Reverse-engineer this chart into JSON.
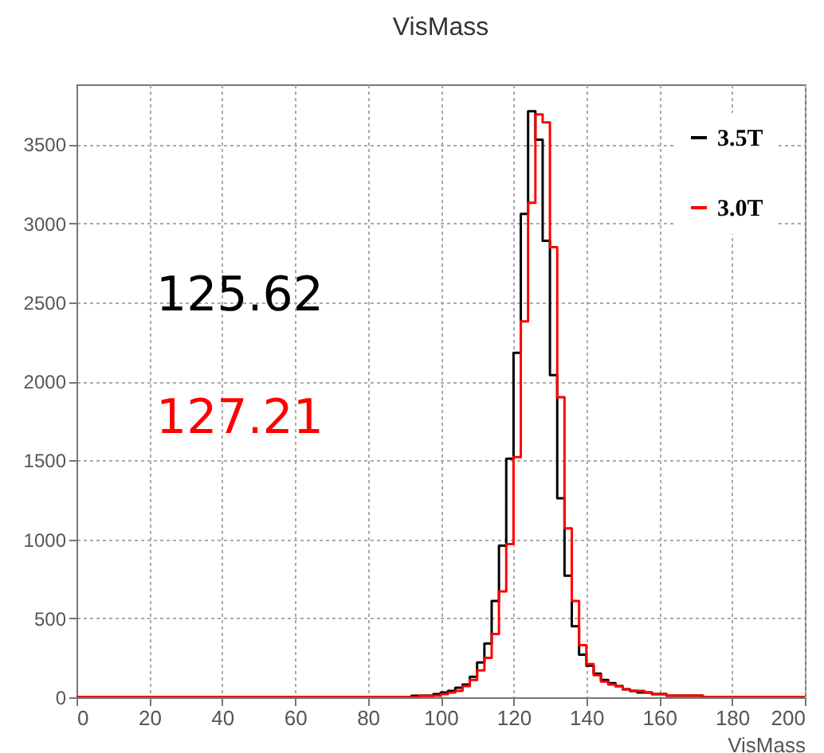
{
  "chart_data": {
    "type": "histogram",
    "title": "VisMass",
    "xlabel": "VisMass",
    "bins": [
      0,
      2,
      4,
      6,
      8,
      10,
      12,
      14,
      16,
      18,
      20,
      22,
      24,
      26,
      28,
      30,
      32,
      34,
      36,
      38,
      40,
      42,
      44,
      46,
      48,
      50,
      52,
      54,
      56,
      58,
      60,
      62,
      64,
      66,
      68,
      70,
      72,
      74,
      76,
      78,
      80,
      82,
      84,
      86,
      88,
      90,
      92,
      94,
      96,
      98,
      100,
      102,
      104,
      106,
      108,
      110,
      112,
      114,
      116,
      118,
      120,
      122,
      124,
      126,
      128,
      130,
      132,
      134,
      136,
      138,
      140,
      142,
      144,
      146,
      148,
      150,
      152,
      154,
      156,
      158,
      160,
      162,
      164,
      166,
      168,
      170,
      172,
      174,
      176,
      178,
      180,
      182,
      184,
      186,
      188,
      190,
      192,
      194,
      196,
      198,
      200
    ],
    "series": [
      {
        "name": "3.5T",
        "color": "#000000",
        "values": [
          0,
          0,
          0,
          0,
          0,
          0,
          0,
          0,
          0,
          0,
          0,
          0,
          0,
          0,
          0,
          0,
          0,
          0,
          0,
          0,
          0,
          0,
          0,
          0,
          0,
          0,
          0,
          0,
          0,
          0,
          0,
          0,
          0,
          0,
          0,
          0,
          0,
          0,
          0,
          0,
          0,
          0,
          0,
          0,
          0,
          0,
          10,
          10,
          10,
          20,
          30,
          40,
          60,
          80,
          130,
          220,
          340,
          610,
          960,
          1510,
          2180,
          3060,
          3710,
          3530,
          2890,
          2040,
          1260,
          770,
          450,
          270,
          200,
          150,
          110,
          90,
          70,
          50,
          40,
          30,
          30,
          20,
          20,
          10,
          10,
          10,
          10,
          10,
          0,
          0,
          0,
          0,
          0,
          0,
          0,
          0,
          0,
          0,
          0,
          0,
          0,
          0
        ]
      },
      {
        "name": "3.0T",
        "color": "#ff0000",
        "values": [
          0,
          0,
          0,
          0,
          0,
          0,
          0,
          0,
          0,
          0,
          0,
          0,
          0,
          0,
          0,
          0,
          0,
          0,
          0,
          0,
          0,
          0,
          0,
          0,
          0,
          0,
          0,
          0,
          0,
          0,
          0,
          0,
          0,
          0,
          0,
          0,
          0,
          0,
          0,
          0,
          0,
          0,
          0,
          0,
          0,
          0,
          0,
          10,
          10,
          10,
          20,
          30,
          40,
          70,
          110,
          170,
          250,
          400,
          670,
          970,
          1520,
          2380,
          3130,
          3690,
          3640,
          2850,
          1900,
          1070,
          610,
          330,
          210,
          140,
          100,
          80,
          70,
          50,
          40,
          40,
          30,
          20,
          20,
          10,
          10,
          10,
          10,
          10,
          0,
          0,
          0,
          0,
          0,
          0,
          0,
          0,
          0,
          0,
          0,
          0,
          0,
          0
        ]
      }
    ],
    "annotations": [
      "125.62",
      "127.21"
    ],
    "xlim": [
      0,
      200
    ],
    "ylim": [
      0,
      3880
    ],
    "xticks": [
      0,
      20,
      40,
      60,
      80,
      100,
      120,
      140,
      160,
      180,
      200
    ],
    "yticks": [
      0,
      500,
      1000,
      1500,
      2000,
      2500,
      3000,
      3500
    ],
    "grid": true,
    "legend": "top right"
  }
}
